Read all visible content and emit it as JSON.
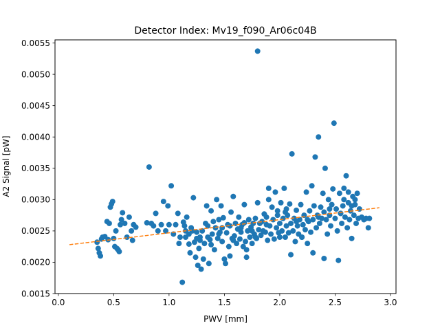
{
  "chart_data": {
    "type": "scatter",
    "title": "Detector Index: Mv19_f090_Ar06c04B",
    "xlabel": "PWV [mm]",
    "ylabel": "A2 Signal [pW]",
    "xlim": [
      -0.03,
      3.05
    ],
    "ylim": [
      0.0015,
      0.00555
    ],
    "xticks": [
      0.0,
      0.5,
      1.0,
      1.5,
      2.0,
      2.5,
      3.0
    ],
    "xtick_labels": [
      "0.0",
      "0.5",
      "1.0",
      "1.5",
      "2.0",
      "2.5",
      "3.0"
    ],
    "yticks": [
      0.0015,
      0.002,
      0.0025,
      0.003,
      0.0035,
      0.004,
      0.0045,
      0.005,
      0.0055
    ],
    "ytick_labels": [
      "0.0015",
      "0.0020",
      "0.0025",
      "0.0030",
      "0.0035",
      "0.0040",
      "0.0045",
      "0.0050",
      "0.0055"
    ],
    "grid": false,
    "colors": {
      "points": "#1f77b4",
      "fit": "#ff7f0e",
      "axes": "#000000"
    },
    "fit_line": {
      "style": "dashed",
      "x": [
        0.1,
        2.9
      ],
      "y": [
        0.00228,
        0.00287
      ]
    },
    "points": [
      [
        0.35,
        0.00232
      ],
      [
        0.36,
        0.00222
      ],
      [
        0.37,
        0.00215
      ],
      [
        0.38,
        0.0021
      ],
      [
        0.39,
        0.00237
      ],
      [
        0.4,
        0.0024
      ],
      [
        0.42,
        0.00241
      ],
      [
        0.44,
        0.00265
      ],
      [
        0.45,
        0.00236
      ],
      [
        0.46,
        0.00262
      ],
      [
        0.47,
        0.00288
      ],
      [
        0.48,
        0.00293
      ],
      [
        0.49,
        0.00297
      ],
      [
        0.5,
        0.00238
      ],
      [
        0.51,
        0.00225
      ],
      [
        0.52,
        0.0025
      ],
      [
        0.53,
        0.00222
      ],
      [
        0.54,
        0.0022
      ],
      [
        0.55,
        0.00217
      ],
      [
        0.56,
        0.0026
      ],
      [
        0.57,
        0.00268
      ],
      [
        0.58,
        0.00279
      ],
      [
        0.6,
        0.00262
      ],
      [
        0.62,
        0.0024
      ],
      [
        0.64,
        0.00272
      ],
      [
        0.66,
        0.0025
      ],
      [
        0.67,
        0.00235
      ],
      [
        0.68,
        0.0026
      ],
      [
        0.7,
        0.00256
      ],
      [
        0.8,
        0.00263
      ],
      [
        0.82,
        0.00352
      ],
      [
        0.84,
        0.00262
      ],
      [
        0.86,
        0.00258
      ],
      [
        0.88,
        0.00278
      ],
      [
        0.9,
        0.0025
      ],
      [
        0.93,
        0.0026
      ],
      [
        0.95,
        0.00297
      ],
      [
        0.97,
        0.0025
      ],
      [
        0.99,
        0.0029
      ],
      [
        1.0,
        0.0026
      ],
      [
        1.02,
        0.00322
      ],
      [
        1.04,
        0.00245
      ],
      [
        1.06,
        0.0026
      ],
      [
        1.08,
        0.00278
      ],
      [
        1.09,
        0.0023
      ],
      [
        1.1,
        0.0024
      ],
      [
        1.12,
        0.00168
      ],
      [
        1.13,
        0.00264
      ],
      [
        1.14,
        0.00258
      ],
      [
        1.15,
        0.0024
      ],
      [
        1.16,
        0.00272
      ],
      [
        1.18,
        0.00229
      ],
      [
        1.19,
        0.00215
      ],
      [
        1.2,
        0.00255
      ],
      [
        1.21,
        0.0025
      ],
      [
        1.22,
        0.00303
      ],
      [
        1.23,
        0.00232
      ],
      [
        1.24,
        0.00208
      ],
      [
        1.25,
        0.00248
      ],
      [
        1.26,
        0.00195
      ],
      [
        1.27,
        0.00222
      ],
      [
        1.28,
        0.0024
      ],
      [
        1.29,
        0.00189
      ],
      [
        1.3,
        0.0025
      ],
      [
        1.31,
        0.00205
      ],
      [
        1.32,
        0.0023
      ],
      [
        1.33,
        0.00262
      ],
      [
        1.34,
        0.0029
      ],
      [
        1.35,
        0.0024
      ],
      [
        1.36,
        0.00198
      ],
      [
        1.37,
        0.00236
      ],
      [
        1.38,
        0.00282
      ],
      [
        1.39,
        0.00245
      ],
      [
        1.4,
        0.00265
      ],
      [
        1.41,
        0.0022
      ],
      [
        1.42,
        0.00255
      ],
      [
        1.43,
        0.003
      ],
      [
        1.44,
        0.00238
      ],
      [
        1.45,
        0.00268
      ],
      [
        1.46,
        0.00248
      ],
      [
        1.47,
        0.0029
      ],
      [
        1.48,
        0.00233
      ],
      [
        1.49,
        0.00271
      ],
      [
        1.5,
        0.00205
      ],
      [
        1.51,
        0.00198
      ],
      [
        1.52,
        0.00247
      ],
      [
        1.53,
        0.0026
      ],
      [
        1.54,
        0.00225
      ],
      [
        1.55,
        0.00258
      ],
      [
        1.56,
        0.0028
      ],
      [
        1.57,
        0.00238
      ],
      [
        1.58,
        0.00305
      ],
      [
        1.59,
        0.00242
      ],
      [
        1.6,
        0.00262
      ],
      [
        1.61,
        0.0023
      ],
      [
        1.62,
        0.00253
      ],
      [
        1.63,
        0.00272
      ],
      [
        1.64,
        0.00237
      ],
      [
        1.65,
        0.00248
      ],
      [
        1.66,
        0.0026
      ],
      [
        1.67,
        0.00225
      ],
      [
        1.68,
        0.00292
      ],
      [
        1.69,
        0.00233
      ],
      [
        1.7,
        0.00208
      ],
      [
        1.71,
        0.0025
      ],
      [
        1.72,
        0.00268
      ],
      [
        1.73,
        0.0024
      ],
      [
        1.74,
        0.00256
      ],
      [
        1.75,
        0.0023
      ],
      [
        1.76,
        0.00262
      ],
      [
        1.77,
        0.00245
      ],
      [
        1.78,
        0.0027
      ],
      [
        1.79,
        0.00238
      ],
      [
        1.8,
        0.00537
      ],
      [
        1.81,
        0.00252
      ],
      [
        1.82,
        0.00262
      ],
      [
        1.83,
        0.00243
      ],
      [
        1.84,
        0.00265
      ],
      [
        1.85,
        0.0025
      ],
      [
        1.86,
        0.00277
      ],
      [
        1.87,
        0.00248
      ],
      [
        1.88,
        0.00272
      ],
      [
        1.89,
        0.00235
      ],
      [
        1.9,
        0.00318
      ],
      [
        1.91,
        0.00258
      ],
      [
        1.92,
        0.00245
      ],
      [
        1.93,
        0.00288
      ],
      [
        1.94,
        0.00268
      ],
      [
        1.95,
        0.00237
      ],
      [
        1.96,
        0.00312
      ],
      [
        1.97,
        0.00255
      ],
      [
        1.98,
        0.00282
      ],
      [
        1.99,
        0.00247
      ],
      [
        2.0,
        0.00262
      ],
      [
        2.01,
        0.00295
      ],
      [
        2.02,
        0.0025
      ],
      [
        2.03,
        0.0027
      ],
      [
        2.04,
        0.00318
      ],
      [
        2.05,
        0.0024
      ],
      [
        2.06,
        0.00258
      ],
      [
        2.07,
        0.00275
      ],
      [
        2.08,
        0.00247
      ],
      [
        2.09,
        0.00293
      ],
      [
        2.1,
        0.00262
      ],
      [
        2.11,
        0.00373
      ],
      [
        2.12,
        0.0025
      ],
      [
        2.13,
        0.0027
      ],
      [
        2.14,
        0.00233
      ],
      [
        2.15,
        0.00283
      ],
      [
        2.16,
        0.00258
      ],
      [
        2.17,
        0.00245
      ],
      [
        2.18,
        0.00268
      ],
      [
        2.19,
        0.00292
      ],
      [
        2.2,
        0.0024
      ],
      [
        2.21,
        0.0026
      ],
      [
        2.22,
        0.00275
      ],
      [
        2.23,
        0.00252
      ],
      [
        2.24,
        0.00312
      ],
      [
        2.25,
        0.0023
      ],
      [
        2.26,
        0.00265
      ],
      [
        2.27,
        0.00282
      ],
      [
        2.28,
        0.00248
      ],
      [
        2.29,
        0.00322
      ],
      [
        2.3,
        0.00268
      ],
      [
        2.31,
        0.0029
      ],
      [
        2.32,
        0.00368
      ],
      [
        2.33,
        0.00255
      ],
      [
        2.34,
        0.00275
      ],
      [
        2.35,
        0.004
      ],
      [
        2.36,
        0.00262
      ],
      [
        2.37,
        0.00288
      ],
      [
        2.38,
        0.0027
      ],
      [
        2.39,
        0.0031
      ],
      [
        2.4,
        0.0028
      ],
      [
        2.41,
        0.0035
      ],
      [
        2.42,
        0.00268
      ],
      [
        2.43,
        0.00245
      ],
      [
        2.44,
        0.003
      ],
      [
        2.45,
        0.00275
      ],
      [
        2.46,
        0.00258
      ],
      [
        2.47,
        0.00292
      ],
      [
        2.48,
        0.00317
      ],
      [
        2.49,
        0.00422
      ],
      [
        2.5,
        0.0027
      ],
      [
        2.51,
        0.00285
      ],
      [
        2.52,
        0.0025
      ],
      [
        2.53,
        0.00203
      ],
      [
        2.54,
        0.0031
      ],
      [
        2.55,
        0.00278
      ],
      [
        2.56,
        0.00262
      ],
      [
        2.57,
        0.0029
      ],
      [
        2.58,
        0.003
      ],
      [
        2.59,
        0.00272
      ],
      [
        2.6,
        0.00338
      ],
      [
        2.61,
        0.00255
      ],
      [
        2.62,
        0.00295
      ],
      [
        2.63,
        0.00268
      ],
      [
        2.64,
        0.00282
      ],
      [
        2.65,
        0.00238
      ],
      [
        2.66,
        0.00305
      ],
      [
        2.67,
        0.00275
      ],
      [
        2.68,
        0.00292
      ],
      [
        2.69,
        0.00262
      ],
      [
        2.7,
        0.0031
      ],
      [
        2.71,
        0.0027
      ],
      [
        2.72,
        0.00285
      ],
      [
        2.74,
        0.00272
      ],
      [
        2.76,
        0.00268
      ],
      [
        2.78,
        0.0027
      ],
      [
        2.8,
        0.00255
      ],
      [
        2.81,
        0.0027
      ],
      [
        1.7,
        0.0022
      ],
      [
        1.8,
        0.00295
      ],
      [
        2.1,
        0.00212
      ],
      [
        2.2,
        0.0024
      ],
      [
        2.3,
        0.00215
      ],
      [
        2.4,
        0.00206
      ],
      [
        1.55,
        0.0021
      ],
      [
        1.9,
        0.003
      ],
      [
        2.0,
        0.0024
      ],
      [
        2.05,
        0.0028
      ],
      [
        1.65,
        0.00255
      ],
      [
        1.75,
        0.0025
      ],
      [
        2.15,
        0.00265
      ],
      [
        2.25,
        0.00268
      ],
      [
        1.45,
        0.00245
      ],
      [
        1.35,
        0.00258
      ],
      [
        1.25,
        0.00238
      ],
      [
        1.15,
        0.0025
      ],
      [
        2.35,
        0.00272
      ],
      [
        2.45,
        0.00285
      ],
      [
        2.55,
        0.00278
      ],
      [
        2.65,
        0.0029
      ],
      [
        2.58,
        0.00318
      ],
      [
        2.62,
        0.00312
      ],
      [
        2.68,
        0.003
      ],
      [
        2.06,
        0.00285
      ],
      [
        1.98,
        0.00275
      ],
      [
        1.88,
        0.0026
      ],
      [
        1.78,
        0.0024
      ],
      [
        1.68,
        0.00263
      ],
      [
        1.58,
        0.00235
      ],
      [
        1.48,
        0.00255
      ],
      [
        1.38,
        0.00228
      ],
      [
        1.28,
        0.00235
      ],
      [
        1.18,
        0.00245
      ]
    ]
  }
}
